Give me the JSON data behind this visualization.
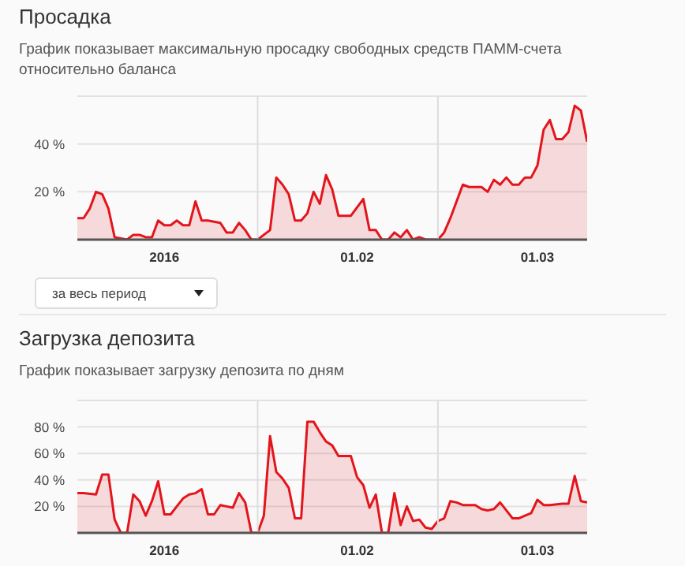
{
  "chart_data": [
    {
      "type": "area",
      "title": "Просадка",
      "subtitle": "График показывает максимальную просадку свободных средств ПАММ-счета относительно баланса",
      "x": [
        "2015-12-18",
        "2015-12-19",
        "2015-12-20",
        "2015-12-21",
        "2015-12-22",
        "2015-12-23",
        "2015-12-24",
        "2015-12-26",
        "2015-12-27",
        "2015-12-28",
        "2015-12-29",
        "2015-12-30",
        "2015-12-31",
        "2016-01-01",
        "2016-01-02",
        "2016-01-03",
        "2016-01-04",
        "2016-01-05",
        "2016-01-06",
        "2016-01-07",
        "2016-01-08",
        "2016-01-10",
        "2016-01-11",
        "2016-01-12",
        "2016-01-13",
        "2016-01-14",
        "2016-01-15",
        "2016-01-16",
        "2016-01-17",
        "2016-01-18",
        "2016-01-19",
        "2016-01-20",
        "2016-01-21",
        "2016-01-22",
        "2016-01-23",
        "2016-01-24",
        "2016-01-25",
        "2016-01-26",
        "2016-01-27",
        "2016-01-28",
        "2016-01-29",
        "2016-01-30",
        "2016-01-31",
        "2016-02-02",
        "2016-02-03",
        "2016-02-04",
        "2016-02-05",
        "2016-02-06",
        "2016-02-07",
        "2016-02-08",
        "2016-02-09",
        "2016-02-10",
        "2016-02-11",
        "2016-02-12",
        "2016-02-14",
        "2016-02-15",
        "2016-02-16",
        "2016-02-18",
        "2016-02-19",
        "2016-02-21",
        "2016-02-22",
        "2016-02-23",
        "2016-02-24",
        "2016-02-25",
        "2016-02-26",
        "2016-02-27",
        "2016-02-28",
        "2016-02-29",
        "2016-03-01",
        "2016-03-02",
        "2016-03-03",
        "2016-03-04",
        "2016-03-05",
        "2016-03-06",
        "2016-03-07",
        "2016-03-08",
        "2016-03-09"
      ],
      "series": [
        {
          "color": "#e3151c",
          "values": [
            9,
            9,
            13,
            20,
            19,
            13,
            1,
            0,
            2,
            2,
            1,
            1,
            8,
            6,
            6,
            8,
            6,
            6,
            16,
            8,
            8,
            7,
            3,
            3,
            7,
            4,
            0,
            0,
            2,
            4,
            26,
            23,
            19,
            8,
            8,
            11,
            20,
            15,
            27,
            21,
            10,
            10,
            10,
            17,
            4,
            4,
            0,
            0,
            3,
            1,
            4,
            0,
            1,
            0,
            0,
            3,
            9,
            23,
            22,
            22,
            20,
            25,
            23,
            26,
            23,
            23,
            26,
            26,
            31,
            46,
            50,
            42,
            42,
            45,
            56,
            54,
            41
          ]
        }
      ],
      "xlim": [
        "2015-12-18",
        "2016-03-09"
      ],
      "xticks": [
        {
          "value": "2016-01-01",
          "label": "2016"
        },
        {
          "value": "2016-02-01",
          "label": "01.02"
        },
        {
          "value": "2016-03-01",
          "label": "01.03"
        }
      ],
      "ylim": [
        0,
        60
      ],
      "yticks": [
        {
          "value": 20,
          "label": "20 %"
        },
        {
          "value": 40,
          "label": "40 %"
        },
        {
          "value": 60,
          "label": null
        }
      ],
      "grid": "y",
      "legend": false,
      "ref_lines": [
        {
          "axis": "x",
          "value": "2016-01-16",
          "label": null,
          "color": "#dddddd"
        },
        {
          "axis": "x",
          "value": "2016-02-14",
          "label": null,
          "color": "#dddddd"
        }
      ],
      "annotations": [
        "за весь период"
      ]
    },
    {
      "type": "area",
      "title": "Загрузка депозита",
      "subtitle": "График показывает загрузку депозита по дням",
      "x": [
        "2015-12-18",
        "2015-12-19",
        "2015-12-21",
        "2015-12-22",
        "2015-12-23",
        "2015-12-24",
        "2015-12-25",
        "2015-12-26",
        "2015-12-27",
        "2015-12-28",
        "2015-12-29",
        "2015-12-30",
        "2015-12-31",
        "2016-01-01",
        "2016-01-02",
        "2016-01-03",
        "2016-01-04",
        "2016-01-05",
        "2016-01-06",
        "2016-01-07",
        "2016-01-08",
        "2016-01-09",
        "2016-01-10",
        "2016-01-11",
        "2016-01-12",
        "2016-01-13",
        "2016-01-14",
        "2016-01-15",
        "2016-01-16",
        "2016-01-17",
        "2016-01-18",
        "2016-01-19",
        "2016-01-20",
        "2016-01-21",
        "2016-01-22",
        "2016-01-23",
        "2016-01-24",
        "2016-01-25",
        "2016-01-26",
        "2016-01-27",
        "2016-01-28",
        "2016-01-29",
        "2016-01-30",
        "2016-01-31",
        "2016-02-01",
        "2016-02-02",
        "2016-02-03",
        "2016-02-04",
        "2016-02-05",
        "2016-02-06",
        "2016-02-07",
        "2016-02-08",
        "2016-02-09",
        "2016-02-10",
        "2016-02-11",
        "2016-02-12",
        "2016-02-13",
        "2016-02-14",
        "2016-02-15",
        "2016-02-16",
        "2016-02-17",
        "2016-02-18",
        "2016-02-20",
        "2016-02-21",
        "2016-02-22",
        "2016-02-23",
        "2016-02-24",
        "2016-02-25",
        "2016-02-26",
        "2016-02-27",
        "2016-02-28",
        "2016-02-29",
        "2016-03-01",
        "2016-03-02",
        "2016-03-03",
        "2016-03-05",
        "2016-03-06",
        "2016-03-07",
        "2016-03-08",
        "2016-03-09"
      ],
      "series": [
        {
          "color": "#e3151c",
          "values": [
            30,
            30,
            29,
            44,
            44,
            10,
            0,
            0,
            29,
            24,
            13,
            24,
            39,
            14,
            14,
            20,
            26,
            29,
            30,
            33,
            14,
            14,
            21,
            20,
            19,
            30,
            23,
            0,
            0,
            13,
            73,
            46,
            41,
            34,
            11,
            11,
            84,
            84,
            76,
            69,
            66,
            58,
            58,
            58,
            42,
            36,
            19,
            29,
            0,
            0,
            30,
            6,
            20,
            9,
            10,
            4,
            3,
            9,
            11,
            24,
            23,
            21,
            21,
            18,
            17,
            18,
            23,
            17,
            11,
            11,
            13,
            15,
            25,
            21,
            21,
            22,
            22,
            43,
            24,
            23
          ]
        }
      ],
      "xlim": [
        "2015-12-18",
        "2016-03-09"
      ],
      "xticks": [
        {
          "value": "2016-01-01",
          "label": "2016"
        },
        {
          "value": "2016-02-01",
          "label": "01.02"
        },
        {
          "value": "2016-03-01",
          "label": "01.03"
        }
      ],
      "ylim": [
        0,
        100
      ],
      "yticks": [
        {
          "value": 20,
          "label": "20 %"
        },
        {
          "value": 40,
          "label": "40 %"
        },
        {
          "value": 60,
          "label": "60 %"
        },
        {
          "value": 80,
          "label": "80 %"
        },
        {
          "value": 100,
          "label": null
        }
      ],
      "grid": "y",
      "legend": false,
      "ref_lines": [
        {
          "axis": "x",
          "value": "2016-01-16",
          "label": null,
          "color": "#dddddd"
        },
        {
          "axis": "x",
          "value": "2016-02-14",
          "label": null,
          "color": "#dddddd"
        }
      ]
    }
  ]
}
